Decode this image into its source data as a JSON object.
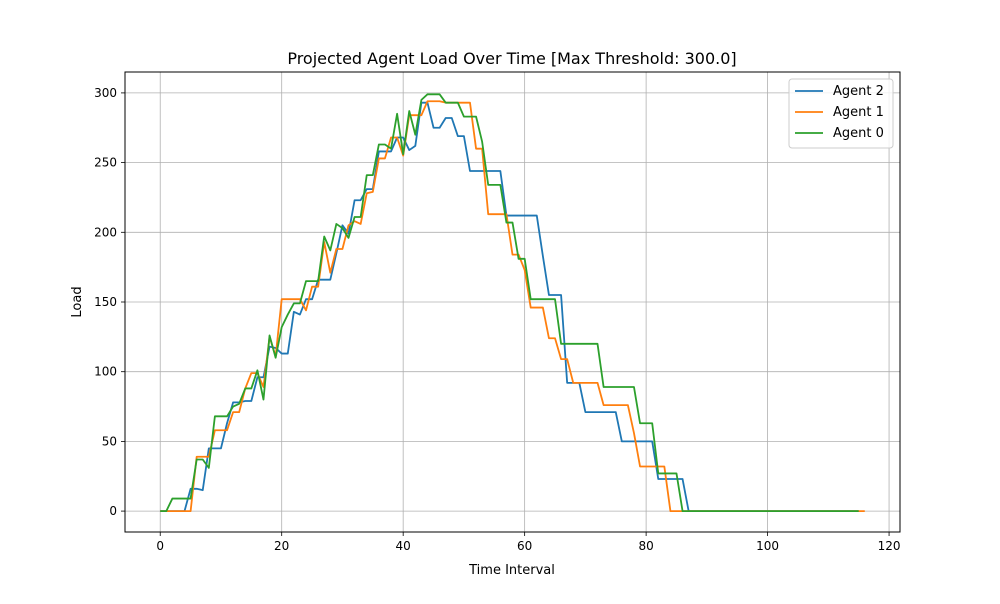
{
  "chart_data": {
    "type": "line",
    "title": "Projected Agent Load Over Time [Max Threshold: 300.0]",
    "xlabel": "Time Interval",
    "ylabel": "Load",
    "xlim": [
      -5.8,
      121.8
    ],
    "ylim": [
      -15,
      315
    ],
    "xticks": [
      0,
      20,
      40,
      60,
      80,
      100,
      120
    ],
    "yticks": [
      0,
      50,
      100,
      150,
      200,
      250,
      300
    ],
    "grid": true,
    "legend_position": "top-right",
    "series": [
      {
        "name": "Agent 2",
        "color": "#1f77b4",
        "points": [
          [
            0,
            0
          ],
          [
            4,
            0
          ],
          [
            5,
            16
          ],
          [
            6,
            16
          ],
          [
            7,
            15
          ],
          [
            8,
            45
          ],
          [
            9,
            45
          ],
          [
            10,
            45
          ],
          [
            11,
            63
          ],
          [
            12,
            78
          ],
          [
            13,
            78
          ],
          [
            14,
            79
          ],
          [
            15,
            79
          ],
          [
            16,
            96
          ],
          [
            17,
            96
          ],
          [
            18,
            118
          ],
          [
            19,
            117
          ],
          [
            20,
            113
          ],
          [
            21,
            113
          ],
          [
            22,
            143
          ],
          [
            23,
            141
          ],
          [
            24,
            152
          ],
          [
            25,
            152
          ],
          [
            26,
            166
          ],
          [
            27,
            166
          ],
          [
            28,
            166
          ],
          [
            29,
            185
          ],
          [
            30,
            205
          ],
          [
            31,
            199
          ],
          [
            32,
            223
          ],
          [
            33,
            223
          ],
          [
            34,
            231
          ],
          [
            35,
            231
          ],
          [
            36,
            258
          ],
          [
            37,
            258
          ],
          [
            38,
            258
          ],
          [
            39,
            268
          ],
          [
            40,
            268
          ],
          [
            41,
            259
          ],
          [
            42,
            262
          ],
          [
            43,
            293
          ],
          [
            44,
            293
          ],
          [
            45,
            275
          ],
          [
            46,
            275
          ],
          [
            47,
            282
          ],
          [
            48,
            282
          ],
          [
            49,
            269
          ],
          [
            50,
            269
          ],
          [
            51,
            244
          ],
          [
            52,
            244
          ],
          [
            53,
            244
          ],
          [
            54,
            244
          ],
          [
            55,
            244
          ],
          [
            56,
            244
          ],
          [
            57,
            212
          ],
          [
            58,
            212
          ],
          [
            59,
            212
          ],
          [
            60,
            212
          ],
          [
            61,
            212
          ],
          [
            62,
            212
          ],
          [
            63,
            183
          ],
          [
            64,
            155
          ],
          [
            65,
            155
          ],
          [
            66,
            155
          ],
          [
            67,
            92
          ],
          [
            68,
            92
          ],
          [
            69,
            92
          ],
          [
            70,
            71
          ],
          [
            71,
            71
          ],
          [
            72,
            71
          ],
          [
            73,
            71
          ],
          [
            74,
            71
          ],
          [
            75,
            71
          ],
          [
            76,
            50
          ],
          [
            77,
            50
          ],
          [
            78,
            50
          ],
          [
            79,
            50
          ],
          [
            80,
            50
          ],
          [
            81,
            50
          ],
          [
            82,
            23
          ],
          [
            83,
            23
          ],
          [
            84,
            23
          ],
          [
            85,
            23
          ],
          [
            86,
            23
          ],
          [
            87,
            0
          ],
          [
            115,
            0
          ]
        ]
      },
      {
        "name": "Agent 1",
        "color": "#ff7f0e",
        "points": [
          [
            0,
            0
          ],
          [
            1,
            0
          ],
          [
            2,
            0
          ],
          [
            3,
            0
          ],
          [
            4,
            0
          ],
          [
            5,
            0
          ],
          [
            6,
            39
          ],
          [
            7,
            39
          ],
          [
            8,
            39
          ],
          [
            9,
            58
          ],
          [
            10,
            58
          ],
          [
            11,
            58
          ],
          [
            12,
            71
          ],
          [
            13,
            71
          ],
          [
            14,
            88
          ],
          [
            15,
            99
          ],
          [
            16,
            99
          ],
          [
            17,
            89
          ],
          [
            18,
            125
          ],
          [
            19,
            111
          ],
          [
            20,
            152
          ],
          [
            21,
            152
          ],
          [
            22,
            152
          ],
          [
            23,
            152
          ],
          [
            24,
            144
          ],
          [
            25,
            161
          ],
          [
            26,
            161
          ],
          [
            27,
            193
          ],
          [
            28,
            171
          ],
          [
            29,
            188
          ],
          [
            30,
            188
          ],
          [
            31,
            205
          ],
          [
            32,
            208
          ],
          [
            33,
            206
          ],
          [
            34,
            228
          ],
          [
            35,
            229
          ],
          [
            36,
            253
          ],
          [
            37,
            253
          ],
          [
            38,
            268
          ],
          [
            39,
            268
          ],
          [
            40,
            255
          ],
          [
            41,
            284
          ],
          [
            42,
            284
          ],
          [
            43,
            284
          ],
          [
            44,
            294
          ],
          [
            45,
            294
          ],
          [
            46,
            294
          ],
          [
            47,
            293
          ],
          [
            48,
            293
          ],
          [
            49,
            293
          ],
          [
            50,
            293
          ],
          [
            51,
            293
          ],
          [
            52,
            260
          ],
          [
            53,
            260
          ],
          [
            54,
            213
          ],
          [
            55,
            213
          ],
          [
            56,
            213
          ],
          [
            57,
            213
          ],
          [
            58,
            184
          ],
          [
            59,
            184
          ],
          [
            60,
            173
          ],
          [
            61,
            146
          ],
          [
            62,
            146
          ],
          [
            63,
            146
          ],
          [
            64,
            124
          ],
          [
            65,
            124
          ],
          [
            66,
            109
          ],
          [
            67,
            109
          ],
          [
            68,
            92
          ],
          [
            69,
            92
          ],
          [
            70,
            92
          ],
          [
            71,
            92
          ],
          [
            72,
            92
          ],
          [
            73,
            76
          ],
          [
            74,
            76
          ],
          [
            75,
            76
          ],
          [
            76,
            76
          ],
          [
            77,
            76
          ],
          [
            78,
            56
          ],
          [
            79,
            32
          ],
          [
            80,
            32
          ],
          [
            81,
            32
          ],
          [
            82,
            32
          ],
          [
            83,
            32
          ],
          [
            84,
            0
          ],
          [
            85,
            0
          ],
          [
            116,
            0
          ]
        ]
      },
      {
        "name": "Agent 0",
        "color": "#2ca02c",
        "points": [
          [
            0,
            0
          ],
          [
            1,
            0
          ],
          [
            2,
            9
          ],
          [
            3,
            9
          ],
          [
            4,
            9
          ],
          [
            5,
            9
          ],
          [
            6,
            37
          ],
          [
            7,
            37
          ],
          [
            8,
            31
          ],
          [
            9,
            68
          ],
          [
            10,
            68
          ],
          [
            11,
            68
          ],
          [
            12,
            75
          ],
          [
            13,
            77
          ],
          [
            14,
            88
          ],
          [
            15,
            88
          ],
          [
            16,
            101
          ],
          [
            17,
            80
          ],
          [
            18,
            126
          ],
          [
            19,
            110
          ],
          [
            20,
            132
          ],
          [
            21,
            141
          ],
          [
            22,
            149
          ],
          [
            23,
            149
          ],
          [
            24,
            165
          ],
          [
            25,
            165
          ],
          [
            26,
            165
          ],
          [
            27,
            197
          ],
          [
            28,
            187
          ],
          [
            29,
            206
          ],
          [
            30,
            203
          ],
          [
            31,
            196
          ],
          [
            32,
            211
          ],
          [
            33,
            211
          ],
          [
            34,
            241
          ],
          [
            35,
            241
          ],
          [
            36,
            263
          ],
          [
            37,
            263
          ],
          [
            38,
            260
          ],
          [
            39,
            285
          ],
          [
            40,
            256
          ],
          [
            41,
            287
          ],
          [
            42,
            270
          ],
          [
            43,
            295
          ],
          [
            44,
            299
          ],
          [
            45,
            299
          ],
          [
            46,
            299
          ],
          [
            47,
            293
          ],
          [
            48,
            293
          ],
          [
            49,
            293
          ],
          [
            50,
            283
          ],
          [
            51,
            283
          ],
          [
            52,
            283
          ],
          [
            53,
            265
          ],
          [
            54,
            234
          ],
          [
            55,
            234
          ],
          [
            56,
            234
          ],
          [
            57,
            207
          ],
          [
            58,
            207
          ],
          [
            59,
            181
          ],
          [
            60,
            181
          ],
          [
            61,
            152
          ],
          [
            62,
            152
          ],
          [
            63,
            152
          ],
          [
            64,
            152
          ],
          [
            65,
            152
          ],
          [
            66,
            120
          ],
          [
            67,
            120
          ],
          [
            68,
            120
          ],
          [
            69,
            120
          ],
          [
            70,
            120
          ],
          [
            71,
            120
          ],
          [
            72,
            120
          ],
          [
            73,
            89
          ],
          [
            74,
            89
          ],
          [
            75,
            89
          ],
          [
            76,
            89
          ],
          [
            77,
            89
          ],
          [
            78,
            89
          ],
          [
            79,
            63
          ],
          [
            80,
            63
          ],
          [
            81,
            63
          ],
          [
            82,
            27
          ],
          [
            83,
            27
          ],
          [
            84,
            27
          ],
          [
            85,
            27
          ],
          [
            86,
            0
          ],
          [
            115,
            0
          ]
        ]
      }
    ]
  }
}
